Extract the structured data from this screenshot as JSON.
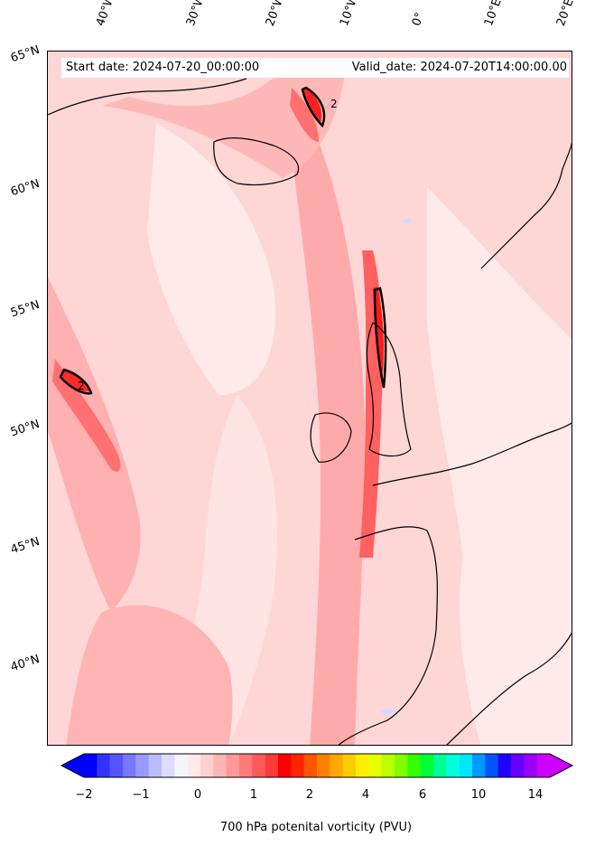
{
  "header": {
    "start_date": "Start date: 2024-07-20_00:00:00",
    "valid_date": "Valid_date: 2024-07-20T14:00:00.00"
  },
  "lon_labels": [
    "40°W",
    "30°W",
    "20°W",
    "10°W",
    "0°",
    "10°E",
    "20°E"
  ],
  "lat_labels": [
    "65°N",
    "60°N",
    "55°N",
    "50°N",
    "45°N",
    "40°N"
  ],
  "colorbar": {
    "label": "700 hPa potenital vorticity (PVU)",
    "ticks": [
      "−2",
      "−1",
      "0",
      "1",
      "2",
      "4",
      "6",
      "10",
      "14"
    ],
    "colors": [
      "#0000ff",
      "#3333ff",
      "#5555ff",
      "#7777ff",
      "#9999ff",
      "#bbbbff",
      "#ddddff",
      "#f4f4ff",
      "#ffeaea",
      "#ffd0d0",
      "#ffb4b4",
      "#ff9898",
      "#ff7a7a",
      "#ff5a5a",
      "#ff3a3a",
      "#ff0000",
      "#ff2400",
      "#ff5400",
      "#ff8000",
      "#ffa800",
      "#ffcc00",
      "#ffee00",
      "#e8ff00",
      "#bbff00",
      "#80ff00",
      "#33ff00",
      "#00ff33",
      "#00ff99",
      "#00ffdd",
      "#00e8ff",
      "#0099ff",
      "#0055ff",
      "#2200ff",
      "#6600ff",
      "#9900ff",
      "#cc00ff"
    ]
  },
  "contour_labels": [
    "2",
    "2"
  ],
  "map_colors": {
    "background": "#ffd6d6",
    "light": "#ffeaea",
    "medium": "#ffb0b0",
    "strong": "#ff7070",
    "intense": "#ff3030",
    "peak": "#ff0000",
    "blue_patch": "#d8d8ff"
  }
}
